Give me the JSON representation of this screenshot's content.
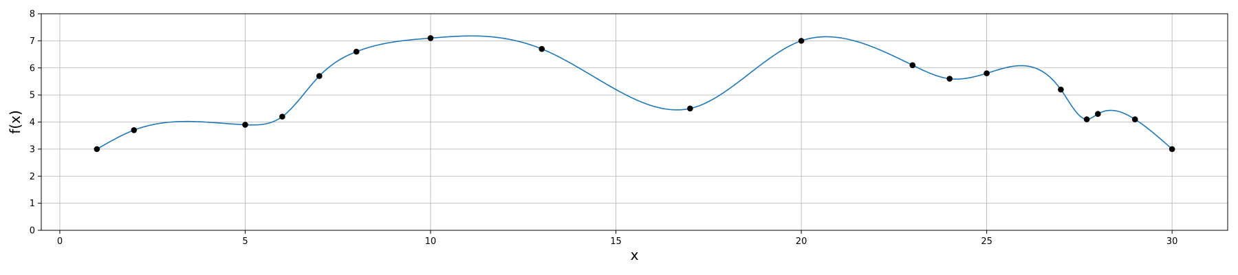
{
  "chart_data": {
    "type": "line",
    "title": "",
    "xlabel": "x",
    "ylabel": "f(x)",
    "xlim": [
      -0.5,
      31.5
    ],
    "ylim": [
      0,
      8
    ],
    "xticks": [
      0,
      5,
      10,
      15,
      20,
      25,
      30
    ],
    "yticks": [
      0,
      1,
      2,
      3,
      4,
      5,
      6,
      7,
      8
    ],
    "grid": true,
    "legend": "none",
    "series": [
      {
        "kind": "scatter",
        "color": "#000000",
        "x": [
          1,
          2,
          5,
          6,
          7,
          8,
          10,
          13,
          17,
          20,
          23,
          24,
          25,
          27,
          27.7,
          28,
          29,
          30
        ],
        "y": [
          3.0,
          3.7,
          3.9,
          4.2,
          5.7,
          6.6,
          7.1,
          6.7,
          4.5,
          7.0,
          6.1,
          5.6,
          5.8,
          5.2,
          4.1,
          4.3,
          4.1,
          3.0
        ]
      },
      {
        "kind": "line",
        "color": "#1f77b4",
        "interpolation": "cubic-spline",
        "x": [
          1,
          2,
          3.5,
          5,
          5.5,
          6,
          7,
          8,
          10,
          11.2,
          13,
          15,
          16.7,
          17,
          20,
          20.7,
          23,
          24,
          25,
          26,
          27,
          27.7,
          28,
          28.3,
          29,
          30
        ],
        "y": [
          3.0,
          3.7,
          4.02,
          3.9,
          3.92,
          4.2,
          5.7,
          6.6,
          7.1,
          7.18,
          6.7,
          5.2,
          4.45,
          4.5,
          7.0,
          7.15,
          6.1,
          5.6,
          5.8,
          6.08,
          5.2,
          4.1,
          4.3,
          4.43,
          4.1,
          3.0
        ]
      }
    ]
  }
}
